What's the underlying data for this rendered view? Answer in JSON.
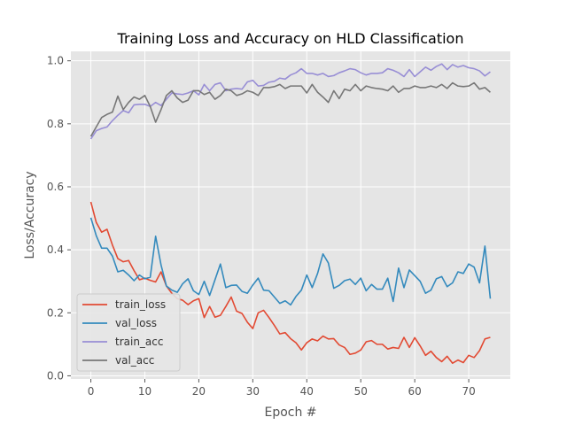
{
  "chart_data": {
    "type": "line",
    "title": "Training Loss and Accuracy on HLD Classification",
    "xlabel": "Epoch #",
    "ylabel": "Loss/Accuracy",
    "xlim": [
      -3.7,
      77.7
    ],
    "ylim": [
      -0.01,
      1.03
    ],
    "xticks": [
      0,
      10,
      20,
      30,
      40,
      50,
      60,
      70
    ],
    "yticks": [
      0.0,
      0.2,
      0.4,
      0.6,
      0.8,
      1.0
    ],
    "ytick_labels": [
      "0.0",
      "0.2",
      "0.4",
      "0.6",
      "0.8",
      "1.0"
    ],
    "grid": true,
    "legend": "lower-left",
    "x": [
      0,
      1,
      2,
      3,
      4,
      5,
      6,
      7,
      8,
      9,
      10,
      11,
      12,
      13,
      14,
      15,
      16,
      17,
      18,
      19,
      20,
      21,
      22,
      23,
      24,
      25,
      26,
      27,
      28,
      29,
      30,
      31,
      32,
      33,
      34,
      35,
      36,
      37,
      38,
      39,
      40,
      41,
      42,
      43,
      44,
      45,
      46,
      47,
      48,
      49,
      50,
      51,
      52,
      53,
      54,
      55,
      56,
      57,
      58,
      59,
      60,
      61,
      62,
      63,
      64,
      65,
      66,
      67,
      68,
      69,
      70,
      71,
      72,
      73,
      74
    ],
    "series": [
      {
        "name": "train_loss",
        "color": "#E24A33",
        "values": [
          0.552,
          0.487,
          0.456,
          0.465,
          0.415,
          0.372,
          0.362,
          0.366,
          0.334,
          0.305,
          0.31,
          0.303,
          0.298,
          0.33,
          0.285,
          0.262,
          0.245,
          0.24,
          0.226,
          0.238,
          0.245,
          0.185,
          0.22,
          0.186,
          0.192,
          0.22,
          0.25,
          0.205,
          0.198,
          0.17,
          0.15,
          0.2,
          0.208,
          0.185,
          0.16,
          0.133,
          0.137,
          0.118,
          0.105,
          0.082,
          0.105,
          0.117,
          0.111,
          0.126,
          0.117,
          0.118,
          0.098,
          0.09,
          0.068,
          0.072,
          0.082,
          0.108,
          0.112,
          0.1,
          0.1,
          0.085,
          0.09,
          0.087,
          0.122,
          0.09,
          0.121,
          0.095,
          0.065,
          0.078,
          0.058,
          0.045,
          0.062,
          0.04,
          0.05,
          0.042,
          0.065,
          0.058,
          0.08,
          0.117,
          0.122
        ]
      },
      {
        "name": "val_loss",
        "color": "#348ABD",
        "values": [
          0.502,
          0.445,
          0.405,
          0.405,
          0.38,
          0.33,
          0.335,
          0.32,
          0.302,
          0.32,
          0.308,
          0.313,
          0.443,
          0.352,
          0.285,
          0.272,
          0.265,
          0.292,
          0.308,
          0.27,
          0.258,
          0.3,
          0.255,
          0.305,
          0.355,
          0.28,
          0.287,
          0.288,
          0.268,
          0.262,
          0.288,
          0.31,
          0.272,
          0.27,
          0.25,
          0.23,
          0.238,
          0.225,
          0.252,
          0.272,
          0.32,
          0.28,
          0.325,
          0.387,
          0.358,
          0.278,
          0.287,
          0.302,
          0.307,
          0.29,
          0.31,
          0.27,
          0.29,
          0.275,
          0.275,
          0.31,
          0.236,
          0.342,
          0.28,
          0.336,
          0.318,
          0.3,
          0.262,
          0.272,
          0.308,
          0.315,
          0.283,
          0.295,
          0.33,
          0.325,
          0.355,
          0.345,
          0.295,
          0.412,
          0.245
        ]
      },
      {
        "name": "train_acc",
        "color": "#988ED5",
        "values": [
          0.752,
          0.778,
          0.785,
          0.79,
          0.81,
          0.827,
          0.842,
          0.835,
          0.86,
          0.862,
          0.862,
          0.855,
          0.868,
          0.858,
          0.878,
          0.898,
          0.895,
          0.893,
          0.898,
          0.905,
          0.892,
          0.925,
          0.905,
          0.925,
          0.93,
          0.905,
          0.91,
          0.912,
          0.91,
          0.933,
          0.938,
          0.92,
          0.922,
          0.932,
          0.935,
          0.945,
          0.942,
          0.955,
          0.962,
          0.975,
          0.96,
          0.96,
          0.955,
          0.96,
          0.95,
          0.953,
          0.962,
          0.968,
          0.975,
          0.972,
          0.962,
          0.955,
          0.96,
          0.96,
          0.962,
          0.975,
          0.97,
          0.962,
          0.95,
          0.972,
          0.95,
          0.965,
          0.98,
          0.97,
          0.982,
          0.99,
          0.972,
          0.988,
          0.98,
          0.985,
          0.978,
          0.975,
          0.968,
          0.952,
          0.965
        ]
      },
      {
        "name": "val_acc",
        "color": "#777777",
        "values": [
          0.76,
          0.79,
          0.82,
          0.83,
          0.837,
          0.888,
          0.845,
          0.868,
          0.885,
          0.878,
          0.89,
          0.855,
          0.805,
          0.845,
          0.89,
          0.905,
          0.882,
          0.868,
          0.875,
          0.905,
          0.905,
          0.893,
          0.9,
          0.878,
          0.89,
          0.91,
          0.905,
          0.89,
          0.895,
          0.905,
          0.9,
          0.89,
          0.915,
          0.915,
          0.918,
          0.925,
          0.912,
          0.92,
          0.92,
          0.92,
          0.898,
          0.925,
          0.9,
          0.885,
          0.868,
          0.905,
          0.88,
          0.91,
          0.905,
          0.925,
          0.905,
          0.92,
          0.915,
          0.912,
          0.91,
          0.905,
          0.92,
          0.9,
          0.912,
          0.912,
          0.92,
          0.915,
          0.915,
          0.92,
          0.915,
          0.925,
          0.912,
          0.93,
          0.92,
          0.918,
          0.92,
          0.93,
          0.91,
          0.915,
          0.9
        ]
      }
    ]
  }
}
